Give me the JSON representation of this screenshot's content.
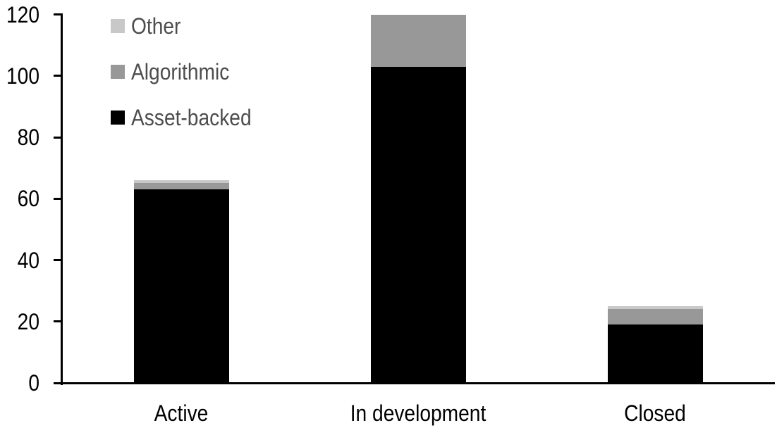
{
  "chart_data": {
    "type": "bar",
    "stacked": true,
    "title": "",
    "xlabel": "",
    "ylabel": "",
    "grid": false,
    "background": "#ffffff",
    "categories": [
      "Active",
      "In development",
      "Closed"
    ],
    "series": [
      {
        "name": "Asset-backed",
        "color": "#000000",
        "values": [
          63,
          103,
          19
        ]
      },
      {
        "name": "Algorithmic",
        "color": "#989898",
        "values": [
          2,
          17,
          5
        ]
      },
      {
        "name": "Other",
        "color": "#c8c8c8",
        "values": [
          1,
          0,
          1
        ]
      }
    ],
    "totals": [
      66,
      120,
      25
    ],
    "ylim": [
      0,
      120
    ],
    "yticks": [
      0,
      20,
      40,
      60,
      80,
      100,
      120
    ],
    "legend": {
      "position": "top-left",
      "order": [
        "Other",
        "Algorithmic",
        "Asset-backed"
      ],
      "text_color": "#4d4d4d"
    },
    "axis_color": "#000000",
    "tick_label_color": "#000000"
  }
}
